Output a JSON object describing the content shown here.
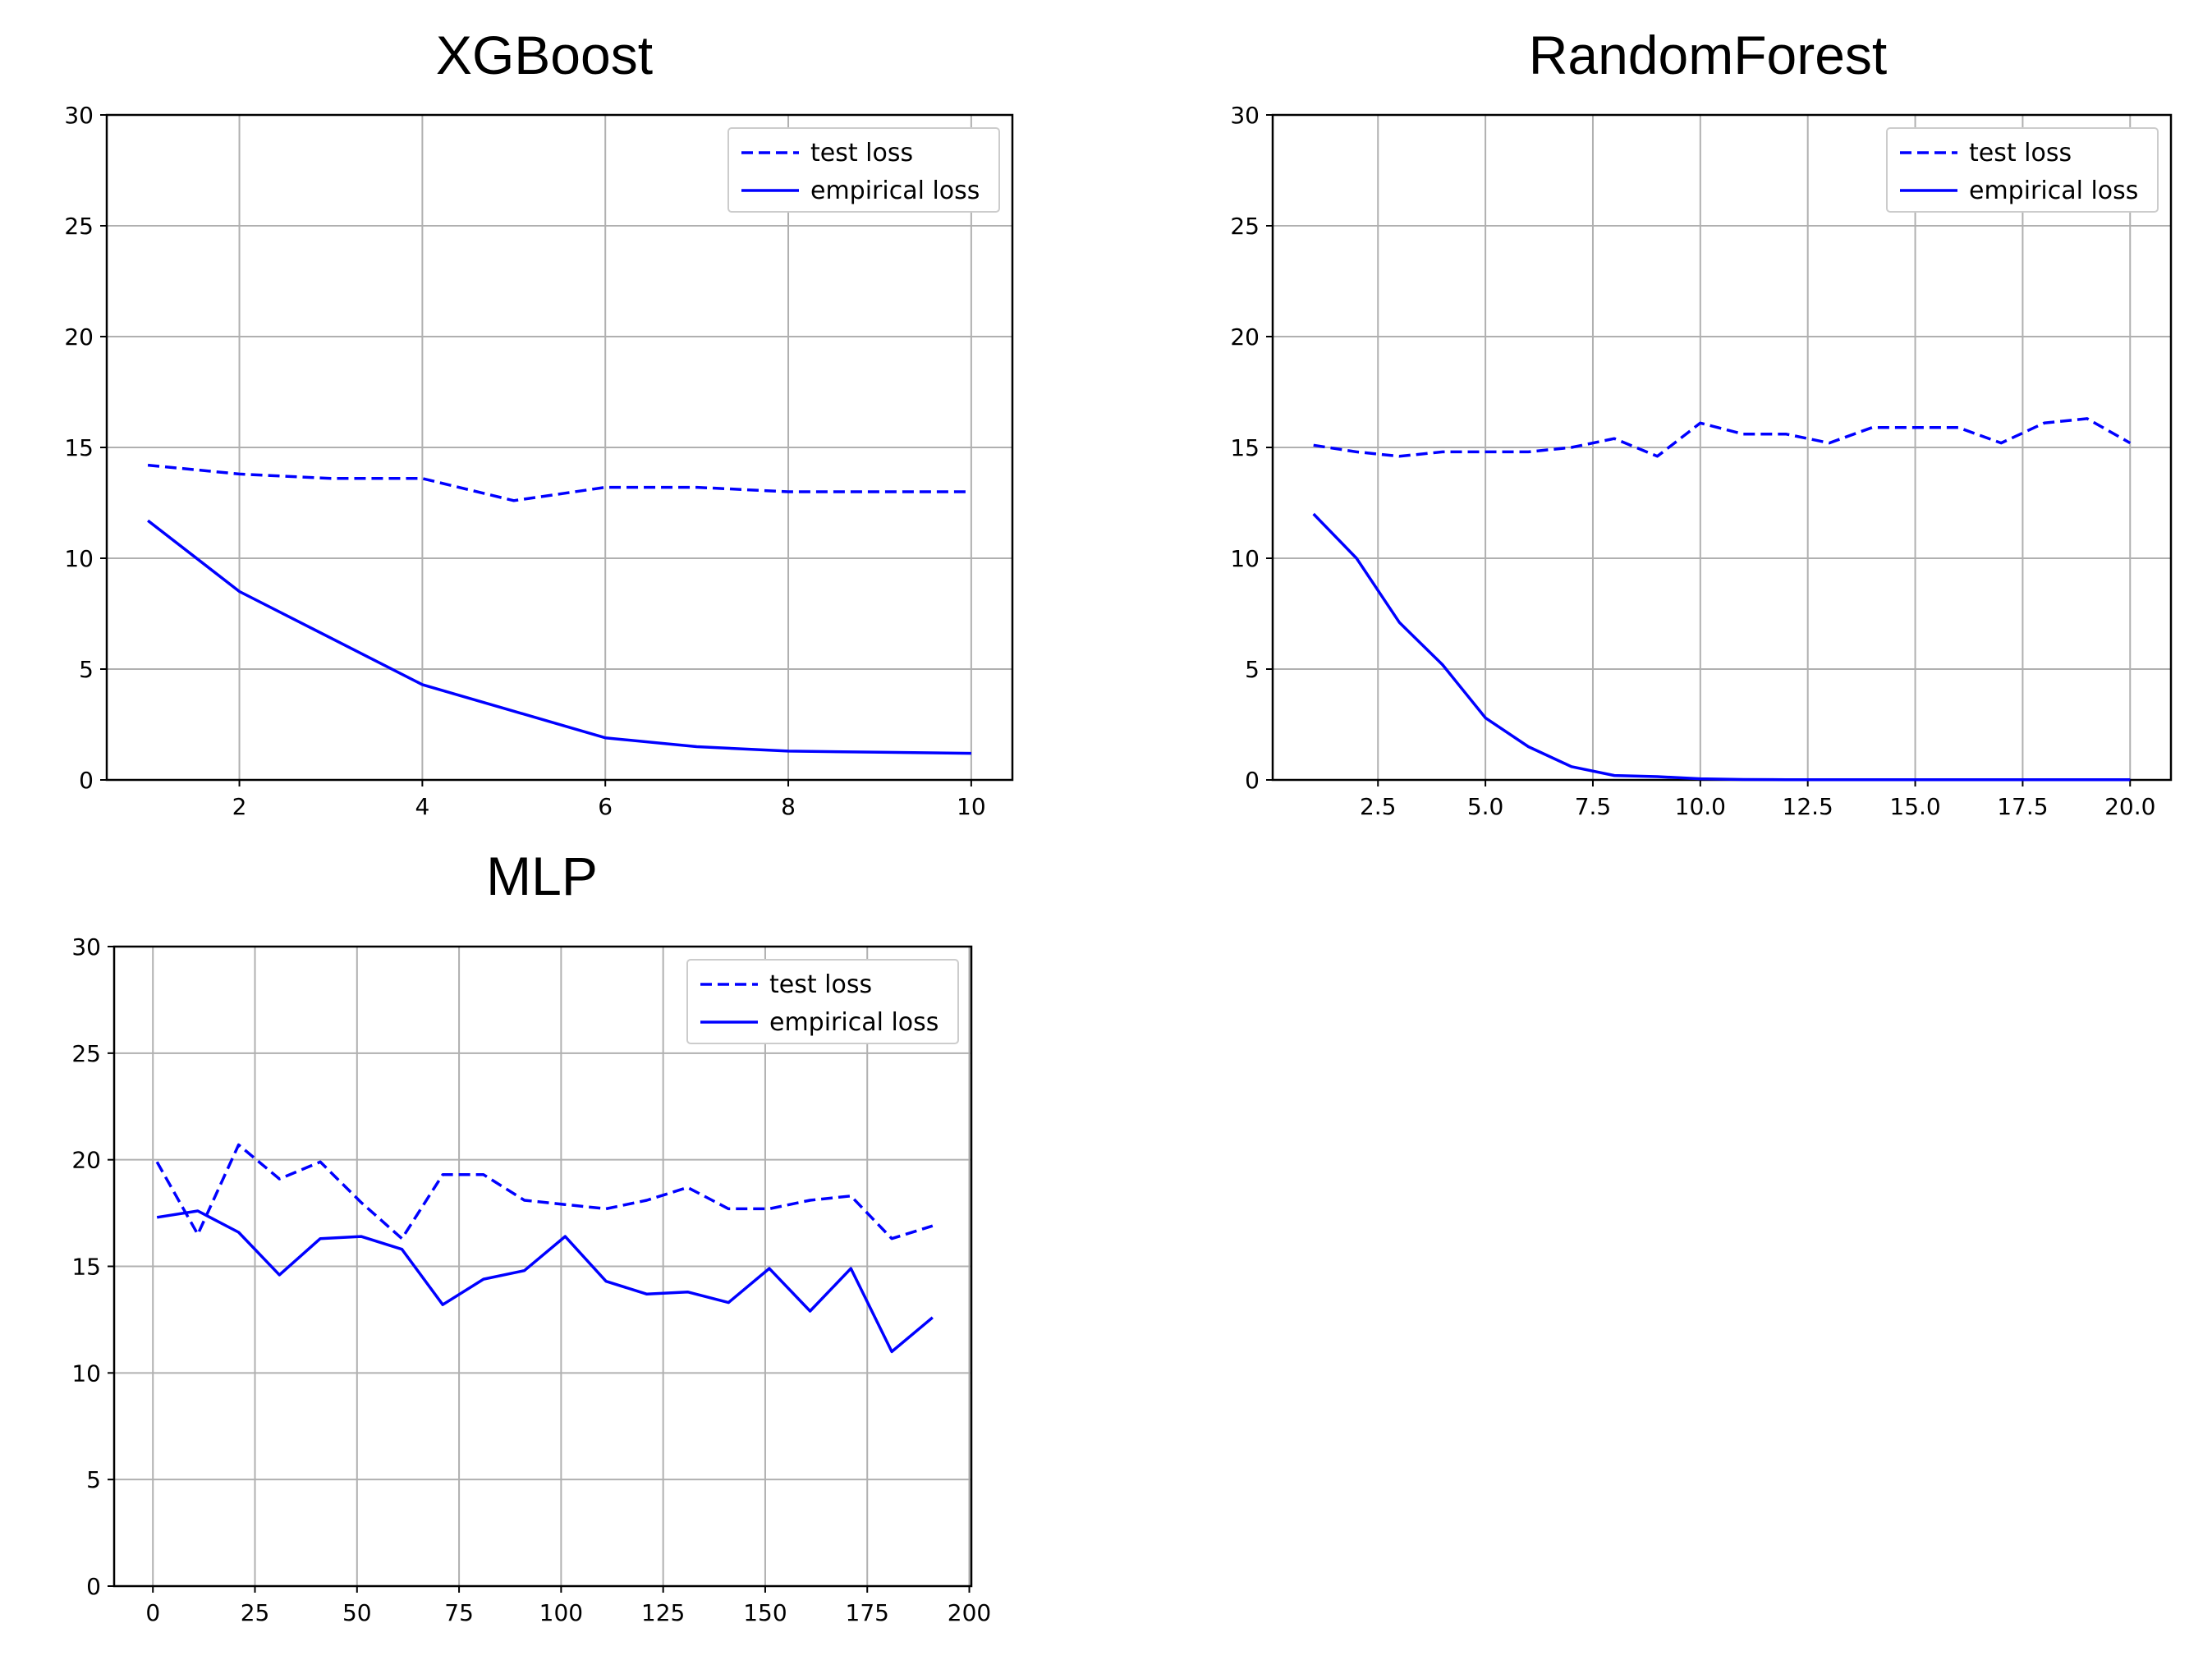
{
  "colors": {
    "series": "#0000ff",
    "grid": "#b0b0b0"
  },
  "legend_position": "upper right",
  "chart_data": [
    {
      "type": "line",
      "title": "XGBoost",
      "xlabel": "",
      "ylabel": "",
      "xlim": [
        0.55,
        10.45
      ],
      "ylim": [
        0,
        30
      ],
      "xticks": [
        2,
        4,
        6,
        8,
        10
      ],
      "xtick_labels": [
        "2",
        "4",
        "6",
        "8",
        "10"
      ],
      "yticks": [
        0,
        5,
        10,
        15,
        20,
        25,
        30
      ],
      "ytick_labels": [
        "0",
        "5",
        "10",
        "15",
        "20",
        "25",
        "30"
      ],
      "grid": true,
      "legend": "upper right",
      "x": [
        1,
        2,
        3,
        4,
        5,
        6,
        7,
        8,
        9,
        10
      ],
      "series": [
        {
          "name": "test loss",
          "style": "dashed",
          "values": [
            14.2,
            13.8,
            13.6,
            13.6,
            12.6,
            13.2,
            13.2,
            13.0,
            13.0,
            13.0
          ]
        },
        {
          "name": "empirical loss",
          "style": "solid",
          "values": [
            11.7,
            8.5,
            6.4,
            4.3,
            3.1,
            1.9,
            1.5,
            1.3,
            1.25,
            1.2
          ]
        }
      ]
    },
    {
      "type": "line",
      "title": "RandomForest",
      "xlabel": "",
      "ylabel": "",
      "xlim": [
        0.05,
        20.95
      ],
      "ylim": [
        0,
        30
      ],
      "xticks": [
        2.5,
        5,
        7.5,
        10,
        12.5,
        15,
        17.5,
        20
      ],
      "xtick_labels": [
        "2.5",
        "5.0",
        "7.5",
        "10.0",
        "12.5",
        "15.0",
        "17.5",
        "20.0"
      ],
      "yticks": [
        0,
        5,
        10,
        15,
        20,
        25,
        30
      ],
      "ytick_labels": [
        "0",
        "5",
        "10",
        "15",
        "20",
        "25",
        "30"
      ],
      "grid": true,
      "legend": "upper right",
      "x": [
        1,
        2,
        3,
        4,
        5,
        6,
        7,
        8,
        9,
        10,
        11,
        12,
        13,
        14,
        15,
        16,
        17,
        18,
        19,
        20
      ],
      "series": [
        {
          "name": "test loss",
          "style": "dashed",
          "values": [
            15.1,
            14.8,
            14.6,
            14.8,
            14.8,
            14.8,
            15.0,
            15.4,
            14.6,
            16.1,
            15.6,
            15.6,
            15.2,
            15.9,
            15.9,
            15.9,
            15.2,
            16.1,
            16.3,
            15.2
          ]
        },
        {
          "name": "empirical loss",
          "style": "solid",
          "values": [
            12.0,
            10.0,
            7.1,
            5.2,
            2.8,
            1.5,
            0.6,
            0.2,
            0.15,
            0.05,
            0.02,
            0.01,
            0.01,
            0.01,
            0.01,
            0.01,
            0.01,
            0.01,
            0.01,
            0.01
          ]
        }
      ]
    },
    {
      "type": "line",
      "title": "MLP",
      "xlabel": "",
      "ylabel": "",
      "xlim": [
        -9.5,
        200.5
      ],
      "ylim": [
        0,
        30
      ],
      "xticks": [
        0,
        25,
        50,
        75,
        100,
        125,
        150,
        175,
        200
      ],
      "xtick_labels": [
        "0",
        "25",
        "50",
        "75",
        "100",
        "125",
        "150",
        "175",
        "200"
      ],
      "yticks": [
        0,
        5,
        10,
        15,
        20,
        25,
        30
      ],
      "ytick_labels": [
        "0",
        "5",
        "10",
        "15",
        "20",
        "25",
        "30"
      ],
      "grid": true,
      "legend": "upper right",
      "x": [
        1,
        11,
        21,
        31,
        41,
        51,
        61,
        71,
        81,
        91,
        101,
        111,
        121,
        131,
        141,
        151,
        161,
        171,
        181,
        191
      ],
      "series": [
        {
          "name": "test loss",
          "style": "dashed",
          "values": [
            19.9,
            16.5,
            20.7,
            19.1,
            19.9,
            18.0,
            16.3,
            19.3,
            19.3,
            18.1,
            17.9,
            17.7,
            18.1,
            18.7,
            17.7,
            17.7,
            18.1,
            18.3,
            16.3,
            16.9
          ]
        },
        {
          "name": "empirical loss",
          "style": "solid",
          "values": [
            17.3,
            17.6,
            16.6,
            14.6,
            16.3,
            16.4,
            15.8,
            13.2,
            14.4,
            14.8,
            16.4,
            14.3,
            13.7,
            13.8,
            13.3,
            14.9,
            12.9,
            14.9,
            11.0,
            12.6
          ]
        }
      ]
    }
  ]
}
